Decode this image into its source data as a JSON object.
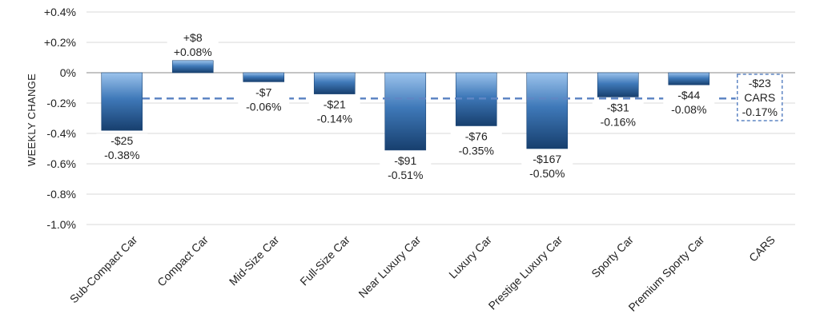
{
  "chart_data": {
    "type": "bar",
    "ylabel": "WEEKLY CHANGE",
    "ylim": [
      -1.0,
      0.4
    ],
    "yticks": [
      0.4,
      0.2,
      0.0,
      -0.2,
      -0.4,
      -0.6,
      -0.8,
      -1.0
    ],
    "ytick_labels": [
      "+0.4%",
      "+0.2%",
      "0%",
      "-0.2%",
      "-0.4%",
      "-0.6%",
      "-0.8%",
      "-1.0%"
    ],
    "grid": true,
    "categories": [
      "Sub-Compact Car",
      "Compact Car",
      "Mid-Size Car",
      "Full-Size Car",
      "Near Luxury Car",
      "Luxury Car",
      "Prestige Luxury Car",
      "Sporty Car",
      "Premium Sporty Car",
      "CARS"
    ],
    "values": [
      -0.38,
      0.08,
      -0.06,
      -0.14,
      -0.51,
      -0.35,
      -0.5,
      -0.16,
      -0.08,
      null
    ],
    "dollar_labels": [
      "-$25",
      "+$8",
      "-$7",
      "-$21",
      "-$91",
      "-$76",
      "-$167",
      "-$31",
      "-$44",
      "-$23"
    ],
    "percent_labels": [
      "-0.38%",
      "+0.08%",
      "-0.06%",
      "-0.14%",
      "-0.51%",
      "-0.35%",
      "-0.50%",
      "-0.16%",
      "-0.08%",
      "-0.17%"
    ],
    "reference_line": {
      "value": -0.17,
      "style": "dashed",
      "label": "CARS",
      "dollar": "-$23",
      "percent": "-0.17%"
    },
    "colors": {
      "bar_light": "#9cc3ec",
      "bar_dark": "#173f6e",
      "reference": "#5f86c4",
      "grid": "#d9d9d9"
    }
  }
}
